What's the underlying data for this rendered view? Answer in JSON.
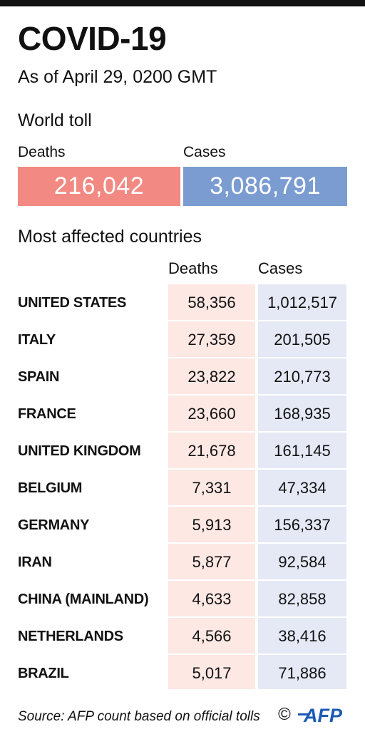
{
  "title": "COVID-19",
  "subtitle": "As of April 29, 0200 GMT",
  "world": {
    "heading": "World toll",
    "deaths_label": "Deaths",
    "cases_label": "Cases",
    "deaths_value": "216,042",
    "cases_value": "3,086,791"
  },
  "countries": {
    "heading": "Most affected countries",
    "deaths_header": "Deaths",
    "cases_header": "Cases",
    "rows": [
      {
        "name": "UNITED STATES",
        "deaths": "58,356",
        "cases": "1,012,517"
      },
      {
        "name": "ITALY",
        "deaths": "27,359",
        "cases": "201,505"
      },
      {
        "name": "SPAIN",
        "deaths": "23,822",
        "cases": "210,773"
      },
      {
        "name": "FRANCE",
        "deaths": "23,660",
        "cases": "168,935"
      },
      {
        "name": "UNITED KINGDOM",
        "deaths": "21,678",
        "cases": "161,145"
      },
      {
        "name": "BELGIUM",
        "deaths": "7,331",
        "cases": "47,334"
      },
      {
        "name": "GERMANY",
        "deaths": "5,913",
        "cases": "156,337"
      },
      {
        "name": "IRAN",
        "deaths": "5,877",
        "cases": "92,584"
      },
      {
        "name": "CHINA (MAINLAND)",
        "deaths": "4,633",
        "cases": "82,858"
      },
      {
        "name": "NETHERLANDS",
        "deaths": "4,566",
        "cases": "38,416"
      },
      {
        "name": "BRAZIL",
        "deaths": "5,017",
        "cases": "71,886"
      }
    ]
  },
  "footer": {
    "source": "Source: AFP count based on official tolls",
    "copyright": "©",
    "logo_text": "AFP"
  },
  "colors": {
    "deaths_box": "#f28982",
    "cases_box": "#7b9cd1",
    "deaths_column": "#fde8e4",
    "cases_column": "#e5e9f5",
    "logo": "#1a5bb5"
  }
}
